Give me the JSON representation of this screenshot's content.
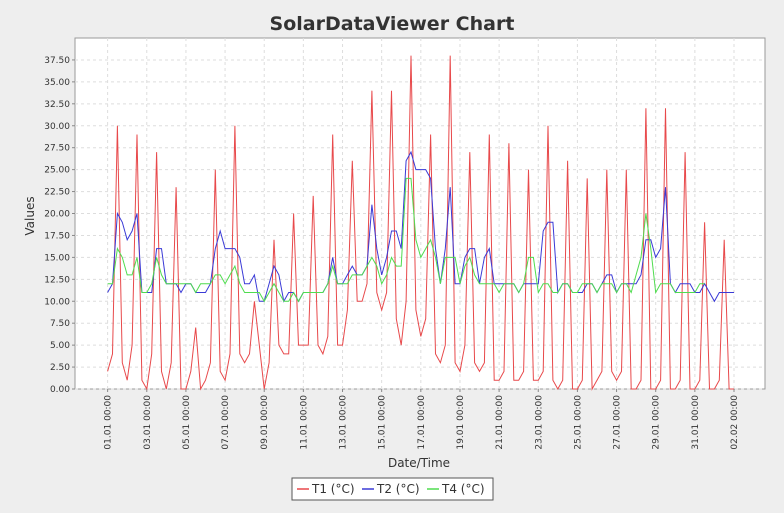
{
  "chart_data": {
    "type": "line",
    "title": "SolarDataViewer Chart",
    "xlabel": "Date/Time",
    "ylabel": "Values",
    "grid": true,
    "legend": "bottom",
    "xlim": [
      "30.12 08:00",
      "03.02 14:00"
    ],
    "xticks": [
      "01.01 00:00",
      "03.01 00:00",
      "05.01 00:00",
      "07.01 00:00",
      "09.01 00:00",
      "11.01 00:00",
      "13.01 00:00",
      "15.01 00:00",
      "17.01 00:00",
      "19.01 00:00",
      "21.01 00:00",
      "23.01 00:00",
      "25.01 00:00",
      "27.01 00:00",
      "29.01 00:00",
      "31.01 00:00",
      "02.02 00:00"
    ],
    "ylim": [
      0,
      40
    ],
    "yticks": [
      {
        "value": 0,
        "label": "0.00"
      },
      {
        "value": 2.5,
        "label": "2.50"
      },
      {
        "value": 5,
        "label": "5.00"
      },
      {
        "value": 7.5,
        "label": "7.50"
      },
      {
        "value": 10,
        "label": "10.00"
      },
      {
        "value": 12.5,
        "label": "12.50"
      },
      {
        "value": 15,
        "label": "15.00"
      },
      {
        "value": 17.5,
        "label": "17.50"
      },
      {
        "value": 20,
        "label": "20.00"
      },
      {
        "value": 22.5,
        "label": "22.50"
      },
      {
        "value": 25,
        "label": "25.00"
      },
      {
        "value": 27.5,
        "label": "27.50"
      },
      {
        "value": 30,
        "label": "30.00"
      },
      {
        "value": 32.5,
        "label": "32.50"
      },
      {
        "value": 35,
        "label": "35.00"
      },
      {
        "value": 37.5,
        "label": "37.50"
      }
    ],
    "x": [
      "01.01 00:00",
      "01.01 06:00",
      "01.01 12:00",
      "01.01 18:00",
      "02.01 00:00",
      "02.01 06:00",
      "02.01 12:00",
      "02.01 18:00",
      "03.01 00:00",
      "03.01 06:00",
      "03.01 12:00",
      "03.01 18:00",
      "04.01 00:00",
      "04.01 06:00",
      "04.01 12:00",
      "04.01 18:00",
      "05.01 00:00",
      "05.01 06:00",
      "05.01 12:00",
      "05.01 18:00",
      "06.01 00:00",
      "06.01 06:00",
      "06.01 12:00",
      "06.01 18:00",
      "07.01 00:00",
      "07.01 06:00",
      "07.01 12:00",
      "07.01 18:00",
      "08.01 00:00",
      "08.01 06:00",
      "08.01 12:00",
      "08.01 18:00",
      "09.01 00:00",
      "09.01 06:00",
      "09.01 12:00",
      "09.01 18:00",
      "10.01 00:00",
      "10.01 06:00",
      "10.01 12:00",
      "10.01 18:00",
      "11.01 00:00",
      "11.01 06:00",
      "11.01 12:00",
      "11.01 18:00",
      "12.01 00:00",
      "12.01 06:00",
      "12.01 12:00",
      "12.01 18:00",
      "13.01 00:00",
      "13.01 06:00",
      "13.01 12:00",
      "13.01 18:00",
      "14.01 00:00",
      "14.01 06:00",
      "14.01 12:00",
      "14.01 18:00",
      "15.01 00:00",
      "15.01 06:00",
      "15.01 12:00",
      "15.01 18:00",
      "16.01 00:00",
      "16.01 06:00",
      "16.01 12:00",
      "16.01 18:00",
      "17.01 00:00",
      "17.01 06:00",
      "17.01 12:00",
      "17.01 18:00",
      "18.01 00:00",
      "18.01 06:00",
      "18.01 12:00",
      "18.01 18:00",
      "19.01 00:00",
      "19.01 06:00",
      "19.01 12:00",
      "19.01 18:00",
      "20.01 00:00",
      "20.01 06:00",
      "20.01 12:00",
      "20.01 18:00",
      "21.01 00:00",
      "21.01 06:00",
      "21.01 12:00",
      "21.01 18:00",
      "22.01 00:00",
      "22.01 06:00",
      "22.01 12:00",
      "22.01 18:00",
      "23.01 00:00",
      "23.01 06:00",
      "23.01 12:00",
      "23.01 18:00",
      "24.01 00:00",
      "24.01 06:00",
      "24.01 12:00",
      "24.01 18:00",
      "25.01 00:00",
      "25.01 06:00",
      "25.01 12:00",
      "25.01 18:00",
      "26.01 00:00",
      "26.01 06:00",
      "26.01 12:00",
      "26.01 18:00",
      "27.01 00:00",
      "27.01 06:00",
      "27.01 12:00",
      "27.01 18:00",
      "28.01 00:00",
      "28.01 06:00",
      "28.01 12:00",
      "28.01 18:00",
      "29.01 00:00",
      "29.01 06:00",
      "29.01 12:00",
      "29.01 18:00",
      "30.01 00:00",
      "30.01 06:00",
      "30.01 12:00",
      "30.01 18:00",
      "31.01 00:00",
      "31.01 06:00",
      "31.01 12:00",
      "31.01 18:00",
      "01.02 00:00",
      "01.02 06:00",
      "01.02 12:00",
      "01.02 18:00",
      "02.02 00:00"
    ],
    "series": [
      {
        "name": "T1 (°C)",
        "color": "#e8494b",
        "values": [
          2,
          4,
          30,
          3,
          1,
          5,
          29,
          1,
          0,
          4,
          27,
          2,
          0,
          3,
          23,
          0,
          0,
          2,
          7,
          0,
          1,
          3,
          25,
          2,
          1,
          4,
          30,
          4,
          3,
          4,
          10,
          5,
          0,
          3,
          17,
          5,
          4,
          4,
          20,
          5,
          5,
          5,
          22,
          5,
          4,
          6,
          29,
          5,
          5,
          9,
          26,
          10,
          10,
          12,
          34,
          11,
          9,
          11,
          34,
          8,
          5,
          10,
          38,
          9,
          6,
          8,
          29,
          4,
          3,
          5,
          38,
          3,
          2,
          5,
          27,
          3,
          2,
          3,
          29,
          1,
          1,
          2,
          28,
          1,
          1,
          2,
          25,
          1,
          1,
          2,
          30,
          1,
          0,
          1,
          26,
          0,
          0,
          1,
          24,
          0,
          1,
          2,
          25,
          2,
          1,
          2,
          25,
          0,
          0,
          1,
          32,
          0,
          0,
          1,
          32,
          0,
          0,
          1,
          27,
          0,
          0,
          1,
          19,
          0,
          0,
          1,
          17,
          0,
          0
        ]
      },
      {
        "name": "T2 (°C)",
        "color": "#3a3ad6",
        "values": [
          11,
          12,
          20,
          19,
          17,
          18,
          20,
          11,
          11,
          11,
          16,
          16,
          12,
          12,
          12,
          11,
          12,
          12,
          11,
          11,
          11,
          12,
          16,
          18,
          16,
          16,
          16,
          15,
          12,
          12,
          13,
          10,
          10,
          12,
          14,
          13,
          10,
          11,
          11,
          10,
          11,
          11,
          11,
          11,
          11,
          12,
          15,
          12,
          12,
          13,
          14,
          13,
          13,
          14,
          21,
          16,
          13,
          15,
          18,
          18,
          16,
          26,
          27,
          25,
          25,
          25,
          24,
          16,
          12,
          16,
          23,
          12,
          12,
          15,
          16,
          16,
          12,
          15,
          16,
          12,
          12,
          12,
          12,
          12,
          11,
          12,
          12,
          12,
          12,
          18,
          19,
          19,
          11,
          12,
          12,
          11,
          11,
          11,
          12,
          12,
          11,
          12,
          13,
          13,
          11,
          12,
          12,
          12,
          12,
          13,
          17,
          17,
          15,
          16,
          23,
          12,
          11,
          12,
          12,
          12,
          11,
          11,
          12,
          11,
          10,
          11,
          11,
          11,
          11
        ]
      },
      {
        "name": "T4 (°C)",
        "color": "#4fdc4f",
        "values": [
          12,
          12,
          16,
          15,
          13,
          13,
          15,
          11,
          11,
          12,
          15,
          13,
          12,
          12,
          12,
          12,
          12,
          12,
          11,
          12,
          12,
          12,
          13,
          13,
          12,
          13,
          14,
          12,
          11,
          11,
          11,
          11,
          10,
          11,
          12,
          11,
          10,
          10,
          11,
          10,
          11,
          11,
          11,
          11,
          11,
          12,
          14,
          12,
          12,
          12,
          13,
          13,
          13,
          14,
          15,
          14,
          12,
          13,
          15,
          14,
          14,
          24,
          24,
          17,
          15,
          16,
          17,
          15,
          12,
          15,
          15,
          15,
          12,
          14,
          15,
          13,
          12,
          12,
          12,
          12,
          11,
          12,
          12,
          12,
          11,
          12,
          15,
          15,
          11,
          12,
          12,
          11,
          11,
          12,
          12,
          11,
          11,
          12,
          12,
          12,
          11,
          12,
          12,
          12,
          11,
          12,
          12,
          11,
          13,
          15,
          20,
          16,
          11,
          12,
          12,
          12,
          11,
          11,
          11,
          11,
          11,
          12,
          12,
          null,
          null,
          null,
          null,
          null,
          null
        ]
      }
    ]
  }
}
